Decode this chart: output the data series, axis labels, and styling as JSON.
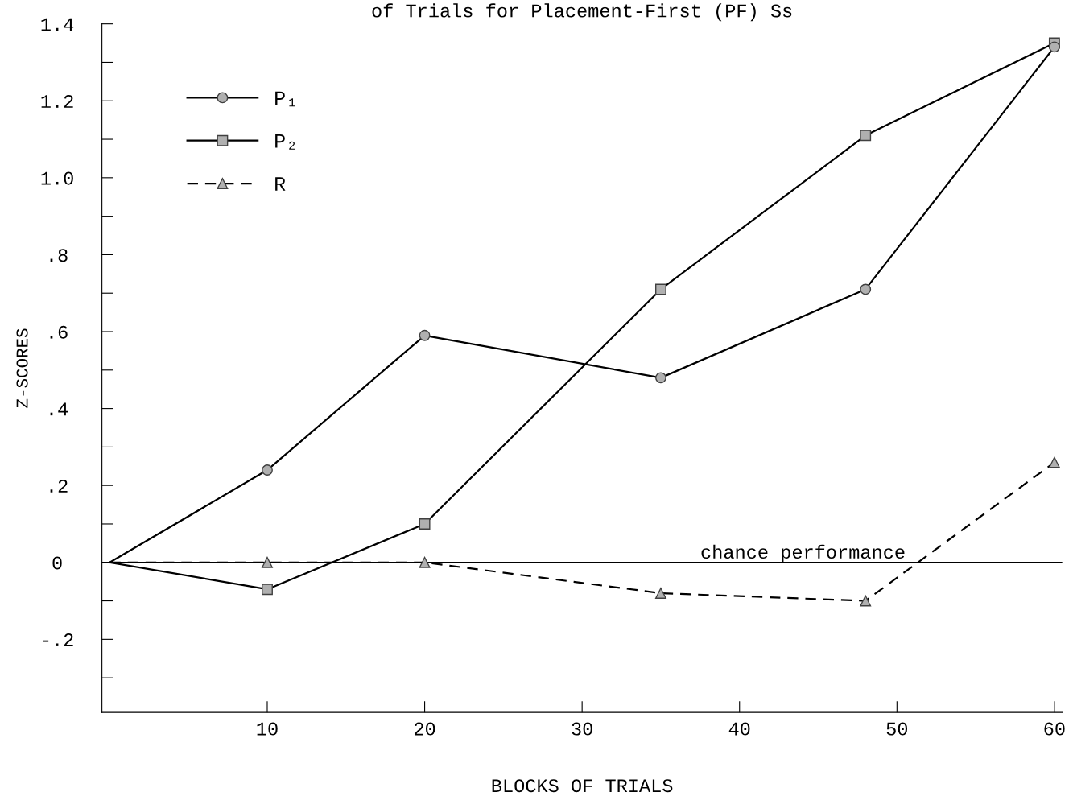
{
  "chart_data": {
    "type": "line",
    "title": "of Trials for Placement-First (PF) Ss",
    "xlabel": "BLOCKS OF TRIALS",
    "ylabel": "Z-SCORES",
    "series": [
      {
        "name": "P₁",
        "color": "#000000",
        "marker": "circle",
        "line_style": "solid",
        "x": [
          0,
          10,
          20,
          35,
          48,
          60
        ],
        "values": [
          0,
          0.24,
          0.59,
          0.48,
          0.71,
          1.34
        ]
      },
      {
        "name": "P₂",
        "color": "#000000",
        "marker": "square",
        "line_style": "solid",
        "x": [
          0,
          10,
          20,
          35,
          48,
          60
        ],
        "values": [
          0,
          -0.07,
          0.1,
          0.71,
          1.11,
          1.35
        ]
      },
      {
        "name": "R",
        "color": "#000000",
        "marker": "triangle",
        "line_style": "dashed",
        "x": [
          0,
          10,
          20,
          35,
          48,
          60
        ],
        "values": [
          0,
          0,
          0,
          -0.08,
          -0.1,
          0.26
        ]
      }
    ],
    "xlim": [
      -0.5,
      60.5
    ],
    "xticks": [
      10,
      20,
      30,
      40,
      50,
      60
    ],
    "ylim": [
      -0.39,
      1.4
    ],
    "yticks": [
      {
        "value": -0.3,
        "label": null
      },
      {
        "value": -0.2,
        "label": "-.2"
      },
      {
        "value": -0.1,
        "label": null
      },
      {
        "value": 0,
        "label": "0"
      },
      {
        "value": 0.1,
        "label": null
      },
      {
        "value": 0.2,
        "label": ".2"
      },
      {
        "value": 0.3,
        "label": null
      },
      {
        "value": 0.4,
        "label": ".4"
      },
      {
        "value": 0.5,
        "label": null
      },
      {
        "value": 0.6,
        "label": ".6"
      },
      {
        "value": 0.7,
        "label": null
      },
      {
        "value": 0.8,
        "label": ".8"
      },
      {
        "value": 0.9,
        "label": null
      },
      {
        "value": 1.0,
        "label": "1.0"
      },
      {
        "value": 1.1,
        "label": null
      },
      {
        "value": 1.2,
        "label": "1.2"
      },
      {
        "value": 1.3,
        "label": null
      },
      {
        "value": 1.4,
        "label": "1.4"
      }
    ],
    "ref_lines": [
      {
        "axis": "y",
        "value": 0,
        "label": "chance performance",
        "color": "#000000",
        "line_style": "solid"
      }
    ],
    "legend": "top left",
    "grid": false
  }
}
